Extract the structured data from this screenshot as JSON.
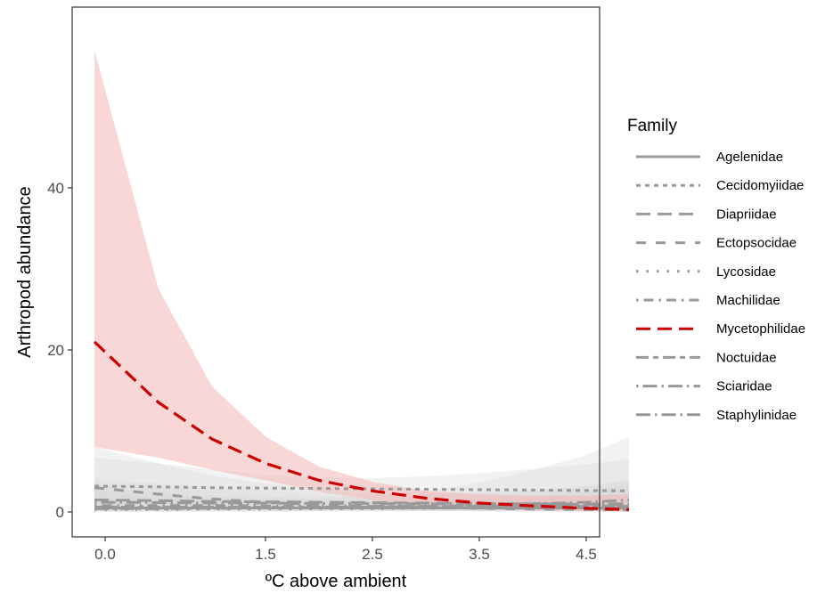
{
  "chart_data": {
    "type": "line",
    "xlabel": "ºC above ambient",
    "ylabel": "Arthropod abundance",
    "x_ticks": [
      0.0,
      1.5,
      2.5,
      3.5,
      4.5
    ],
    "x_tick_labels": [
      "0.0",
      "1.5",
      "2.5",
      "3.5",
      "4.5"
    ],
    "y_ticks": [
      0,
      20,
      40
    ],
    "y_tick_labels": [
      "0",
      "20",
      "40"
    ],
    "xlim": [
      -0.25,
      5.25
    ],
    "ylim": [
      -2.5,
      59
    ],
    "grid": false,
    "legend": {
      "title": "Family",
      "placement": "right"
    },
    "x": [
      -0.1,
      0.5,
      1.0,
      1.5,
      2.0,
      2.5,
      3.0,
      3.5,
      4.0,
      4.5,
      4.9
    ],
    "series": [
      {
        "name": "Agelenidae",
        "linetype": "solid",
        "color": "#999999",
        "values": [
          0.5,
          0.5,
          0.5,
          0.5,
          0.5,
          0.5,
          0.5,
          0.5,
          0.5,
          0.5,
          0.5
        ],
        "lower": [
          0.1,
          0.1,
          0.1,
          0.1,
          0.1,
          0.1,
          0.1,
          0.1,
          0.1,
          0.1,
          0.1
        ],
        "upper": [
          2.5,
          2.0,
          1.6,
          1.4,
          1.3,
          1.2,
          1.2,
          1.3,
          1.5,
          1.8,
          2.2
        ]
      },
      {
        "name": "Cecidomyiidae",
        "linetype": "dotted",
        "color": "#999999",
        "values": [
          3.2,
          3.1,
          3.0,
          2.95,
          2.9,
          2.85,
          2.8,
          2.75,
          2.7,
          2.65,
          2.6
        ],
        "lower": [
          2.0,
          2.2,
          2.3,
          2.3,
          2.2,
          2.1,
          2.0,
          1.9,
          1.7,
          1.5,
          1.3
        ],
        "upper": [
          6.7,
          6.0,
          5.2,
          4.6,
          4.2,
          4.2,
          4.4,
          4.8,
          5.3,
          5.9,
          6.5
        ]
      },
      {
        "name": "Diapriidae",
        "linetype": "longdash",
        "color": "#999999",
        "values": [
          1.5,
          1.4,
          1.3,
          1.25,
          1.2,
          1.15,
          1.1,
          1.05,
          1.0,
          0.95,
          0.9
        ],
        "lower": [
          0.4,
          0.5,
          0.6,
          0.6,
          0.6,
          0.6,
          0.5,
          0.4,
          0.3,
          0.2,
          0.1
        ],
        "upper": [
          4.0,
          3.5,
          3.0,
          2.6,
          2.3,
          2.2,
          2.2,
          2.4,
          2.7,
          3.2,
          3.8
        ]
      },
      {
        "name": "Ectopsocidae",
        "linetype": "dashed",
        "color": "#999999",
        "values": [
          3.0,
          2.2,
          1.6,
          1.2,
          0.9,
          0.7,
          0.55,
          0.45,
          0.35,
          0.3,
          0.25
        ],
        "lower": [
          1.0,
          1.0,
          0.8,
          0.6,
          0.4,
          0.3,
          0.2,
          0.1,
          0.05,
          0.0,
          0.0
        ],
        "upper": [
          8.0,
          6.0,
          4.5,
          3.5,
          2.8,
          2.2,
          1.8,
          1.6,
          1.5,
          1.5,
          1.6
        ]
      },
      {
        "name": "Lycosidae",
        "linetype": "dotted-sparse",
        "color": "#999999",
        "values": [
          0.3,
          0.3,
          0.35,
          0.35,
          0.4,
          0.4,
          0.45,
          0.5,
          0.55,
          0.6,
          0.7
        ],
        "lower": [
          0.0,
          0.0,
          0.05,
          0.05,
          0.1,
          0.1,
          0.1,
          0.1,
          0.1,
          0.1,
          0.1
        ],
        "upper": [
          1.6,
          1.4,
          1.3,
          1.2,
          1.1,
          1.1,
          1.2,
          1.4,
          1.8,
          2.5,
          3.5
        ]
      },
      {
        "name": "Machilidae",
        "linetype": "dotdash",
        "color": "#999999",
        "values": [
          0.8,
          0.8,
          0.8,
          0.75,
          0.75,
          0.75,
          0.7,
          0.7,
          0.7,
          0.7,
          0.7
        ],
        "lower": [
          0.2,
          0.3,
          0.3,
          0.3,
          0.3,
          0.3,
          0.3,
          0.2,
          0.2,
          0.1,
          0.1
        ],
        "upper": [
          3.0,
          2.5,
          2.1,
          1.8,
          1.6,
          1.5,
          1.5,
          1.6,
          1.9,
          2.4,
          3.0
        ]
      },
      {
        "name": "Mycetophilidae",
        "linetype": "longdash",
        "color": "#cc0000",
        "values": [
          21.0,
          13.5,
          9.0,
          6.0,
          3.9,
          2.6,
          1.7,
          1.1,
          0.75,
          0.45,
          0.3
        ],
        "lower": [
          8.0,
          6.7,
          5.2,
          3.9,
          2.5,
          1.5,
          0.8,
          0.4,
          0.2,
          0.1,
          0.05
        ],
        "upper": [
          57.0,
          27.5,
          15.5,
          9.3,
          5.6,
          3.7,
          2.6,
          2.2,
          2.0,
          2.0,
          2.2
        ]
      },
      {
        "name": "Noctuidae",
        "linetype": "twodash",
        "color": "#999999",
        "values": [
          0.6,
          0.6,
          0.6,
          0.6,
          0.6,
          0.6,
          0.6,
          0.65,
          0.65,
          0.7,
          0.7
        ],
        "lower": [
          0.1,
          0.1,
          0.2,
          0.2,
          0.2,
          0.2,
          0.2,
          0.2,
          0.1,
          0.1,
          0.1
        ],
        "upper": [
          2.5,
          2.1,
          1.8,
          1.6,
          1.4,
          1.4,
          1.5,
          1.7,
          2.0,
          2.6,
          3.4
        ]
      },
      {
        "name": "Sciaridae",
        "linetype": "dot-longdash",
        "color": "#999999",
        "values": [
          1.2,
          1.15,
          1.1,
          1.1,
          1.05,
          1.05,
          1.0,
          1.0,
          1.0,
          1.0,
          1.0
        ],
        "lower": [
          0.4,
          0.5,
          0.5,
          0.5,
          0.5,
          0.5,
          0.5,
          0.4,
          0.3,
          0.2,
          0.2
        ],
        "upper": [
          3.4,
          2.9,
          2.5,
          2.2,
          2.0,
          1.9,
          2.0,
          2.2,
          2.6,
          3.2,
          4.0
        ]
      },
      {
        "name": "Staphylinidae",
        "linetype": "longdash-dot",
        "color": "#999999",
        "values": [
          0.4,
          0.4,
          0.45,
          0.5,
          0.55,
          0.6,
          0.7,
          0.8,
          1.0,
          1.2,
          1.5
        ],
        "lower": [
          0.05,
          0.05,
          0.1,
          0.1,
          0.1,
          0.15,
          0.15,
          0.2,
          0.2,
          0.2,
          0.2
        ],
        "upper": [
          2.2,
          1.9,
          1.7,
          1.6,
          1.7,
          2.0,
          2.6,
          3.6,
          5.2,
          7.0,
          9.3
        ]
      }
    ],
    "colors": {
      "highlight": "#cc0000",
      "highlight_ribbon": "#f4b6b6",
      "other": "#999999",
      "other_ribbon": "#d9d9d9",
      "panel_border": "#333333"
    }
  }
}
